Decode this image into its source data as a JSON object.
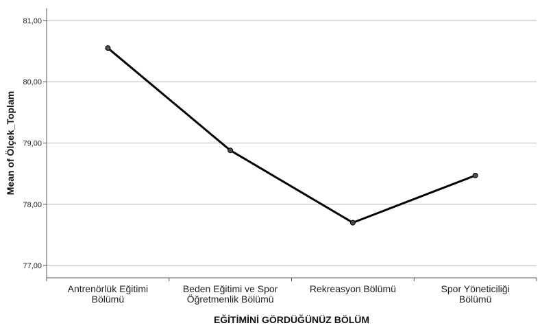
{
  "chart_data": {
    "type": "line",
    "title": "",
    "xlabel": "EĞİTİMİNİ GÖRDÜĞÜNÜZ BÖLÜM",
    "ylabel": "Mean of Ölçek_Toplam",
    "categories": [
      [
        "Antrenörlük Eğitimi",
        "Bölümü"
      ],
      [
        "Beden Eğitimi ve Spor",
        "Öğretmenlik Bölümü"
      ],
      [
        "Rekreasyon Bölümü"
      ],
      [
        "Spor Yöneticiliği",
        "Bölümü"
      ]
    ],
    "series": [
      {
        "values": [
          80.55,
          78.88,
          77.7,
          78.47
        ]
      }
    ],
    "ylim": [
      76.8,
      81.2
    ],
    "yticks": [
      77.0,
      78.0,
      79.0,
      80.0,
      81.0
    ],
    "ytick_labels": [
      "77,00",
      "78,00",
      "79,00",
      "80,00",
      "81,00"
    ],
    "grid": "horizontal",
    "colors": {
      "line": "#000000",
      "marker_fill": "#4d4d4d",
      "grid": "#b8b8b8",
      "axis": "#555555"
    }
  }
}
